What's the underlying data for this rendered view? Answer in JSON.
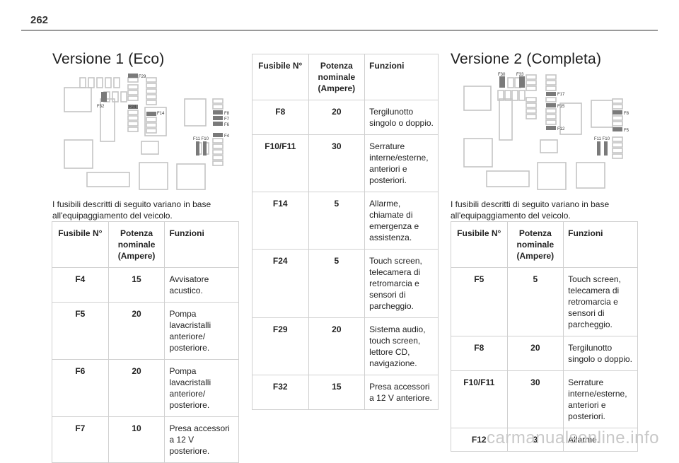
{
  "page": {
    "number": "262"
  },
  "v1": {
    "title": "Versione 1 (Eco)",
    "labels": {
      "f29": "F29",
      "f32": "F32",
      "f24": "F24",
      "f14": "F14",
      "f8": "F8",
      "f7": "F7",
      "f6": "F6",
      "f4": "F4",
      "f11f10": "F11 F10"
    },
    "intro": "I fusibili descritti di seguito variano in base all'equipaggiamento del veicolo.",
    "headers": {
      "num": "Fusibile N°",
      "pow": "Potenza nominale (Ampere)",
      "func": "Funzioni"
    },
    "rows": [
      {
        "num": "F4",
        "pow": "15",
        "func": "Avvisatore acustico."
      },
      {
        "num": "F5",
        "pow": "20",
        "func": "Pompa lavacristalli anteriore/ posteriore."
      },
      {
        "num": "F6",
        "pow": "20",
        "func": "Pompa lavacristalli anteriore/ posteriore."
      },
      {
        "num": "F7",
        "pow": "10",
        "func": "Presa accessori a 12 V posteriore."
      }
    ]
  },
  "mid": {
    "headers": {
      "num": "Fusibile N°",
      "pow": "Potenza nominale (Ampere)",
      "func": "Funzioni"
    },
    "rows": [
      {
        "num": "F8",
        "pow": "20",
        "func": "Tergilunotto singolo o doppio."
      },
      {
        "num": "F10/F11",
        "pow": "30",
        "func": "Serrature interne/esterne, anteriori e posteriori."
      },
      {
        "num": "F14",
        "pow": "5",
        "func": "Allarme, chiamate di emergenza e assistenza."
      },
      {
        "num": "F24",
        "pow": "5",
        "func": "Touch screen, telecamera di retromarcia e sensori di parcheggio."
      },
      {
        "num": "F29",
        "pow": "20",
        "func": "Sistema audio, touch screen, lettore CD, navigazione."
      },
      {
        "num": "F32",
        "pow": "15",
        "func": "Presa accessori a 12 V anteriore."
      }
    ]
  },
  "v2": {
    "title": "Versione 2 (Completa)",
    "labels": {
      "f30": "F30",
      "f33": "F33",
      "f17": "F17",
      "f15": "F15",
      "f12": "F12",
      "f8": "F8",
      "f5": "F5",
      "f11f10": "F11 F10"
    },
    "intro": "I fusibili descritti di seguito variano in base all'equipaggiamento del veicolo.",
    "headers": {
      "num": "Fusibile N°",
      "pow": "Potenza nominale (Ampere)",
      "func": "Funzioni"
    },
    "rows": [
      {
        "num": "F5",
        "pow": "5",
        "func": "Touch screen, telecamera di retromarcia e sensori di parcheggio."
      },
      {
        "num": "F8",
        "pow": "20",
        "func": "Tergilunotto singolo o doppio."
      },
      {
        "num": "F10/F11",
        "pow": "30",
        "func": "Serrature interne/esterne, anteriori e posteriori."
      },
      {
        "num": "F12",
        "pow": "3",
        "func": "Allarme."
      }
    ]
  },
  "watermark": "carmanualsonline.info"
}
